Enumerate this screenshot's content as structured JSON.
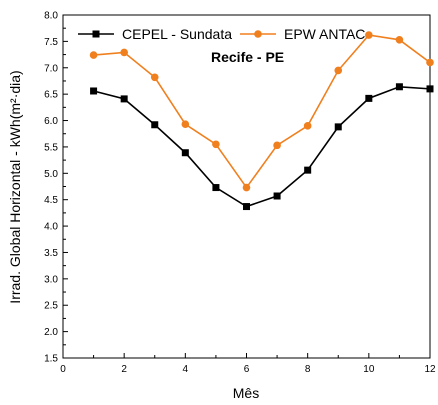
{
  "chart_data": {
    "type": "line",
    "xlabel": "Mês",
    "ylabel": "Irrad. Global Horizontal - kWh(m²·dia)",
    "annotation": "Recife - PE",
    "xlim": [
      0,
      12
    ],
    "ylim": [
      1.5,
      8.0
    ],
    "xticks": [
      0,
      2,
      4,
      6,
      8,
      10,
      12
    ],
    "yticks": [
      1.5,
      2.0,
      2.5,
      3.0,
      3.5,
      4.0,
      4.5,
      5.0,
      5.5,
      6.0,
      6.5,
      7.0,
      7.5,
      8.0
    ],
    "grid": false,
    "legend_position": "top",
    "x": [
      1,
      2,
      3,
      4,
      5,
      6,
      7,
      8,
      9,
      10,
      11,
      12
    ],
    "series": [
      {
        "name": "CEPEL - Sundata",
        "color": "#000000",
        "marker": "square",
        "values": [
          6.56,
          6.41,
          5.92,
          5.39,
          4.73,
          4.37,
          4.57,
          5.06,
          5.88,
          6.42,
          6.64,
          6.6
        ]
      },
      {
        "name": "EPW ANTAC",
        "color": "#f07f1e",
        "marker": "circle",
        "values": [
          7.24,
          7.29,
          6.82,
          5.93,
          5.55,
          4.73,
          5.53,
          5.9,
          6.95,
          7.62,
          7.53,
          7.1
        ]
      }
    ]
  }
}
